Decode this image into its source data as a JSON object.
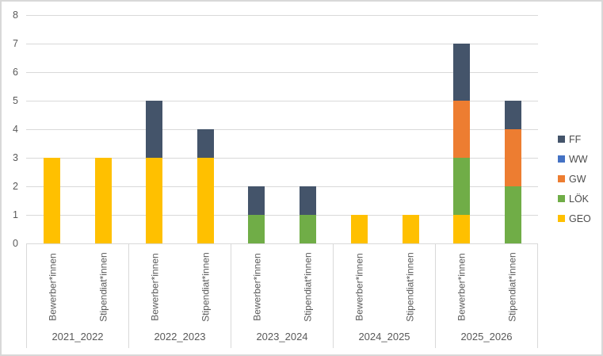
{
  "chart_data": {
    "type": "bar",
    "stacked": true,
    "title": "",
    "xlabel": "",
    "ylabel": "",
    "ylim": [
      0,
      8
    ],
    "ytick_step": 1,
    "grid": true,
    "legend_position": "right",
    "groups": [
      "2021_2022",
      "2022_2023",
      "2023_2024",
      "2024_2025",
      "2025_2026"
    ],
    "bars_per_group": [
      "Bewerber*innen",
      "Stipendiat*innen"
    ],
    "stack_order_bottom_to_top": [
      "GEO",
      "LÖK",
      "GW",
      "WW",
      "FF"
    ],
    "series": [
      {
        "name": "GEO",
        "color": "#FFC000",
        "values": [
          3,
          3,
          3,
          3,
          0,
          0,
          1,
          1,
          1,
          0
        ]
      },
      {
        "name": "LÖK",
        "color": "#70AD47",
        "values": [
          0,
          0,
          0,
          0,
          1,
          1,
          0,
          0,
          2,
          2
        ]
      },
      {
        "name": "GW",
        "color": "#ED7D31",
        "values": [
          0,
          0,
          0,
          0,
          0,
          0,
          0,
          0,
          2,
          2
        ]
      },
      {
        "name": "WW",
        "color": "#4472C4",
        "values": [
          0,
          0,
          0,
          0,
          0,
          0,
          0,
          0,
          0,
          0
        ]
      },
      {
        "name": "FF",
        "color": "#44546A",
        "values": [
          0,
          0,
          2,
          1,
          1,
          1,
          0,
          0,
          2,
          1
        ]
      }
    ],
    "bar_totals": [
      3,
      3,
      5,
      4,
      2,
      2,
      1,
      1,
      7,
      5
    ],
    "legend_top_to_bottom": [
      "FF",
      "WW",
      "GW",
      "LÖK",
      "GEO"
    ]
  },
  "style_colors": {
    "gridline": "#d9d9d9",
    "axis_text": "#595959",
    "border": "#d8d8d8",
    "background": "#ffffff"
  }
}
